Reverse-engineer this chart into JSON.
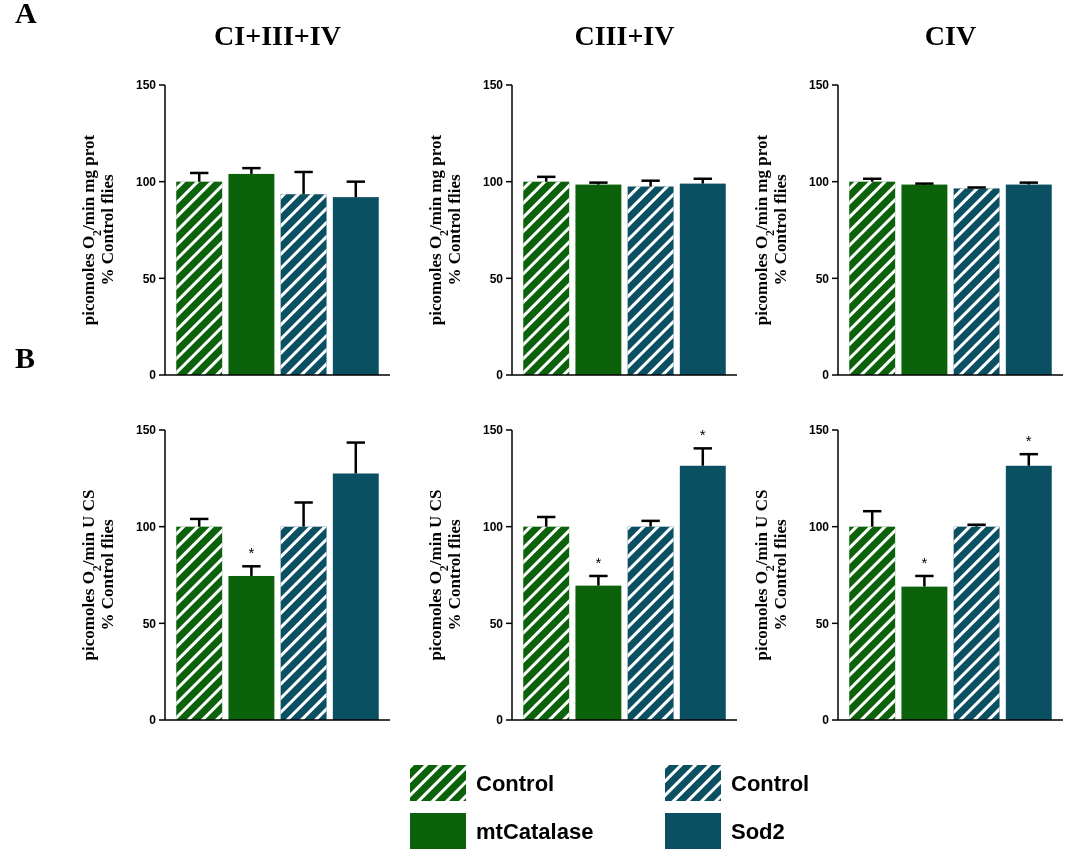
{
  "chart_data": [
    {
      "type": "bar",
      "title": "CI+III+IV",
      "ylabel": "picomoles O$_{2}$/min mg prot\n% Control flies",
      "annotations": [
        "A"
      ],
      "categories": [
        null
      ],
      "ylim": [
        0,
        150
      ],
      "yticks": [
        0,
        50,
        100,
        150
      ],
      "series": [
        {
          "color": "#0b620b",
          "values": [
            100
          ],
          "errors": [
            4.5
          ]
        },
        {
          "color": "#0b620b",
          "values": [
            104
          ],
          "errors": [
            3
          ]
        },
        {
          "color": "#0b4f63",
          "values": [
            93.5
          ],
          "errors": [
            11.5
          ]
        },
        {
          "color": "#0b4f63",
          "values": [
            92
          ],
          "errors": [
            8
          ]
        }
      ]
    },
    {
      "type": "bar",
      "title": "CIII+IV",
      "ylabel": "picomoles O$_{2}$/min mg prot\n% Control flies",
      "categories": [
        null
      ],
      "ylim": [
        0,
        150
      ],
      "yticks": [
        0,
        50,
        100,
        150
      ],
      "series": [
        {
          "color": "#0b620b",
          "values": [
            100
          ],
          "errors": [
            2.5
          ]
        },
        {
          "color": "#0b620b",
          "values": [
            98.5
          ],
          "errors": [
            1
          ]
        },
        {
          "color": "#0b4f63",
          "values": [
            97.5
          ],
          "errors": [
            3
          ]
        },
        {
          "color": "#0b4f63",
          "values": [
            99
          ],
          "errors": [
            2.5
          ]
        }
      ]
    },
    {
      "type": "bar",
      "title": "CIV",
      "ylabel": "picomoles O$_{2}$/min mg prot\n% Control flies",
      "categories": [
        null
      ],
      "ylim": [
        0,
        150
      ],
      "yticks": [
        0,
        50,
        100,
        150
      ],
      "series": [
        {
          "color": "#0b620b",
          "values": [
            100
          ],
          "errors": [
            1.5
          ]
        },
        {
          "color": "#0b620b",
          "values": [
            98.5
          ],
          "errors": [
            0.5
          ]
        },
        {
          "color": "#0b4f63",
          "values": [
            96.5
          ],
          "errors": [
            0.5
          ]
        },
        {
          "color": "#0b4f63",
          "values": [
            98.5
          ],
          "errors": [
            1
          ]
        }
      ]
    },
    {
      "type": "bar",
      "ylabel": "picomoles O$_{2}$/min U CS\n% Control flies",
      "annotations": [
        "B"
      ],
      "categories": [
        null
      ],
      "ylim": [
        0,
        150
      ],
      "yticks": [
        0,
        50,
        100,
        150
      ],
      "series": [
        {
          "color": "#0b620b",
          "values": [
            100
          ],
          "errors": [
            4
          ]
        },
        {
          "color": "#0b620b",
          "values": [
            74.5
          ],
          "errors": [
            5
          ],
          "value_labels": [
            "*"
          ]
        },
        {
          "color": "#0b4f63",
          "values": [
            100
          ],
          "errors": [
            12.5
          ]
        },
        {
          "color": "#0b4f63",
          "values": [
            127.5
          ],
          "errors": [
            16
          ]
        }
      ]
    },
    {
      "type": "bar",
      "ylabel": "picomoles O$_{2}$/min U CS\n% Control flies",
      "categories": [
        null
      ],
      "ylim": [
        0,
        150
      ],
      "yticks": [
        0,
        50,
        100,
        150
      ],
      "series": [
        {
          "color": "#0b620b",
          "values": [
            100
          ],
          "errors": [
            5
          ]
        },
        {
          "color": "#0b620b",
          "values": [
            69.5
          ],
          "errors": [
            5
          ],
          "value_labels": [
            "*"
          ]
        },
        {
          "color": "#0b4f63",
          "values": [
            100
          ],
          "errors": [
            3
          ]
        },
        {
          "color": "#0b4f63",
          "values": [
            131.5
          ],
          "errors": [
            9
          ],
          "value_labels": [
            "*"
          ]
        }
      ]
    },
    {
      "type": "bar",
      "ylabel": "picomoles O$_{2}$/min U CS\n% Control flies",
      "categories": [
        null
      ],
      "ylim": [
        0,
        150
      ],
      "yticks": [
        0,
        50,
        100,
        150
      ],
      "legend": "bottom",
      "series": [
        {
          "name": "Control",
          "color": "#0b620b",
          "values": [
            100
          ],
          "errors": [
            8
          ]
        },
        {
          "name": "mtCatalase",
          "color": "#0b620b",
          "values": [
            69
          ],
          "errors": [
            5.5
          ],
          "value_labels": [
            "*"
          ]
        },
        {
          "name": "Control",
          "color": "#0b4f63",
          "values": [
            100
          ],
          "errors": [
            1
          ]
        },
        {
          "name": "Sod2",
          "color": "#0b4f63",
          "values": [
            131.5
          ],
          "errors": [
            6
          ],
          "value_labels": [
            "*"
          ]
        }
      ]
    }
  ]
}
